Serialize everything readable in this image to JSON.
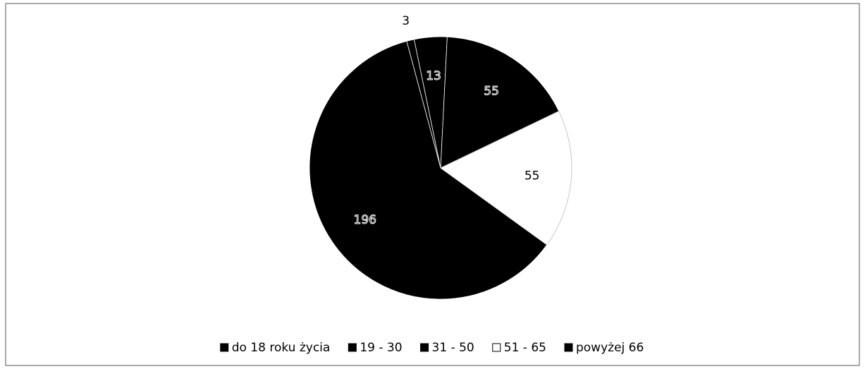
{
  "chart_data": {
    "type": "pie",
    "categories": [
      "do 18 roku życia",
      "19 - 30",
      "31 - 50",
      "51 - 65",
      "powyżej 66"
    ],
    "values": [
      3,
      13,
      55,
      55,
      196
    ],
    "colors": [
      "#000000",
      "#000000",
      "#000000",
      "#ffffff",
      "#000000"
    ],
    "legend": "bottom"
  }
}
